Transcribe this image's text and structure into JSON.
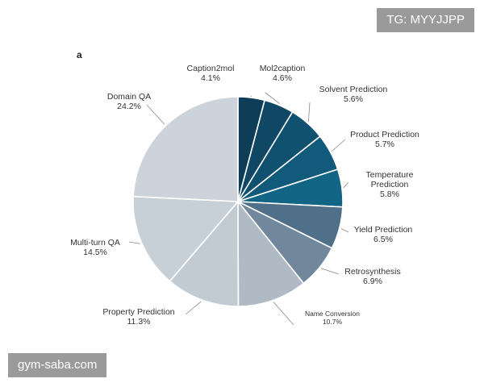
{
  "watermarks": {
    "top_right": "TG: MYYJJPP",
    "bottom_left": "gym-saba.com"
  },
  "chart_data": {
    "type": "pie",
    "panel_label": "a",
    "start": "12 o'clock",
    "direction": "clockwise",
    "slices": [
      {
        "name": "Caption2mol",
        "value": 4.1,
        "label": "4.1%",
        "color": "#0e3d58"
      },
      {
        "name": "Mol2caption",
        "value": 4.6,
        "label": "4.6%",
        "color": "#0f4764"
      },
      {
        "name": "Solvent Prediction",
        "value": 5.6,
        "label": "5.6%",
        "color": "#105170"
      },
      {
        "name": "Product Prediction",
        "value": 5.7,
        "label": "5.7%",
        "color": "#115a7c"
      },
      {
        "name": "Temperature Prediction",
        "value": 5.8,
        "label": "5.8%",
        "color": "#136585"
      },
      {
        "name": "Yield Prediction",
        "value": 6.5,
        "label": "6.5%",
        "color": "#4f7088"
      },
      {
        "name": "Retrosynthesis",
        "value": 6.9,
        "label": "6.9%",
        "color": "#72879c"
      },
      {
        "name": "Name Conversion",
        "value": 10.7,
        "label": "10.7%",
        "color": "#b0bac4"
      },
      {
        "name": "Property Prediction",
        "value": 11.3,
        "label": "11.3%",
        "color": "#c3cbd2"
      },
      {
        "name": "Multi-turn QA",
        "value": 14.5,
        "label": "14.5%",
        "color": "#c8d0d7"
      },
      {
        "name": "Domain QA",
        "value": 24.2,
        "label": "24.2%",
        "color": "#ccd3da"
      }
    ]
  }
}
